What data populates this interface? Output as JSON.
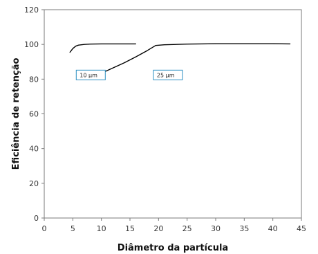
{
  "chart_data": {
    "type": "line",
    "title": "",
    "xlabel": "Diâmetro da partícula",
    "ylabel": "Eficiência de retenção",
    "xlim": [
      0,
      45
    ],
    "ylim": [
      0,
      120
    ],
    "xticks": [
      0,
      5,
      10,
      15,
      20,
      25,
      30,
      35,
      40,
      45
    ],
    "yticks": [
      0,
      20,
      40,
      60,
      80,
      100,
      120
    ],
    "grid": false,
    "series": [
      {
        "name": "10 µm",
        "color": "#000000",
        "label_color": "#2a8fc1",
        "label_anchor": [
          5.6,
          79.6
        ],
        "x": [
          4.5,
          5.0,
          5.5,
          6.0,
          7.0,
          8.0,
          10.0,
          12.0,
          14.0,
          16.0
        ],
        "y": [
          95.5,
          97.6,
          99.0,
          99.6,
          100.0,
          100.2,
          100.3,
          100.3,
          100.3,
          100.3
        ]
      },
      {
        "name": "25 µm",
        "color": "#000000",
        "label_color": "#2a8fc1",
        "label_anchor": [
          19.1,
          79.6
        ],
        "x": [
          8.6,
          10.0,
          12.0,
          14.0,
          16.0,
          18.0,
          19.5,
          21.0,
          25.0,
          30.0,
          35.0,
          40.0,
          43.0
        ],
        "y": [
          81.6,
          83.4,
          86.4,
          89.4,
          92.8,
          96.4,
          99.4,
          99.8,
          100.2,
          100.4,
          100.4,
          100.4,
          100.3
        ]
      }
    ]
  }
}
